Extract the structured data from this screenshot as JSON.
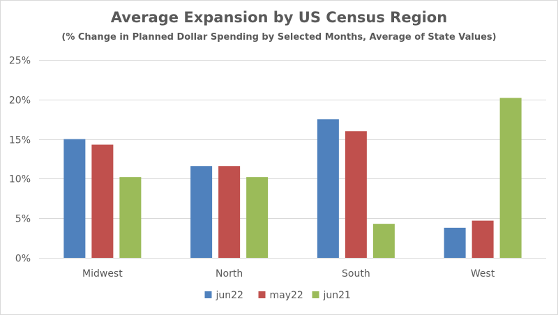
{
  "chart_data": {
    "type": "bar",
    "title": "Average Expansion by US Census Region",
    "subtitle": "(% Change in Planned Dollar  Spending by Selected Months, Average of State Values)",
    "xlabel": "",
    "ylabel": "",
    "categories": [
      "Midwest",
      "North",
      "South",
      "West"
    ],
    "series": [
      {
        "name": "jun22",
        "color": "#4f81bd",
        "values": [
          15.0,
          11.6,
          17.5,
          3.8
        ]
      },
      {
        "name": "may22",
        "color": "#c0504d",
        "values": [
          14.3,
          11.6,
          16.0,
          4.7
        ]
      },
      {
        "name": "jun21",
        "color": "#9bbb59",
        "values": [
          10.2,
          10.2,
          4.3,
          20.2
        ]
      }
    ],
    "ylim": [
      0,
      25
    ],
    "yticks": [
      0,
      5,
      10,
      15,
      20,
      25
    ],
    "ytick_labels": [
      "0%",
      "5%",
      "10%",
      "15%",
      "20%",
      "25%"
    ],
    "grid": true,
    "legend_position": "bottom"
  },
  "colors": {
    "gridline": "#d9d9d9",
    "text": "#595959"
  }
}
